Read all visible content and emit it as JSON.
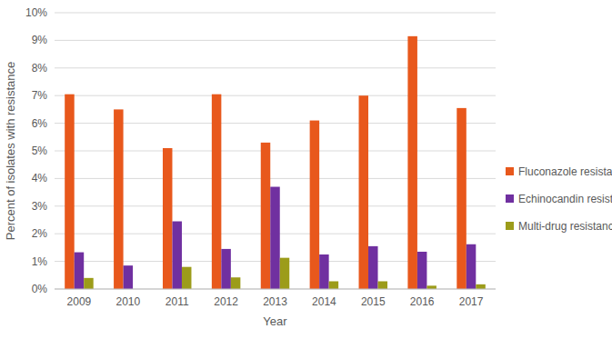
{
  "chart_data": {
    "type": "bar",
    "x_label": "Year",
    "y_label": "Percent of isolates with resistance",
    "categories": [
      "2009",
      "2010",
      "2011",
      "2012",
      "2013",
      "2014",
      "2015",
      "2016",
      "2017"
    ],
    "series": [
      {
        "name": "Fluconazole resistance",
        "color": "#E8581C",
        "values": [
          7.05,
          6.5,
          5.1,
          7.05,
          5.3,
          6.1,
          7.0,
          9.15,
          6.55
        ]
      },
      {
        "name": "Echinocandin resistance",
        "color": "#7030A0",
        "values": [
          1.33,
          0.85,
          2.45,
          1.45,
          3.7,
          1.25,
          1.55,
          1.35,
          1.62
        ]
      },
      {
        "name": "Multi-drug resistance",
        "color": "#9C9C1A",
        "values": [
          0.4,
          0,
          0.8,
          0.42,
          1.13,
          0.28,
          0.28,
          0.12,
          0.17
        ]
      }
    ],
    "ylim": [
      0,
      10
    ],
    "yticks": [
      {
        "value": 0,
        "label": "0%"
      },
      {
        "value": 1,
        "label": "1%"
      },
      {
        "value": 2,
        "label": "2%"
      },
      {
        "value": 3,
        "label": "3%"
      },
      {
        "value": 4,
        "label": "4%"
      },
      {
        "value": 5,
        "label": "5%"
      },
      {
        "value": 6,
        "label": "6%"
      },
      {
        "value": 7,
        "label": "7%"
      },
      {
        "value": 8,
        "label": "8%"
      },
      {
        "value": 9,
        "label": "9%"
      },
      {
        "value": 10,
        "label": "10%"
      }
    ],
    "grid": true,
    "legend": "right"
  }
}
